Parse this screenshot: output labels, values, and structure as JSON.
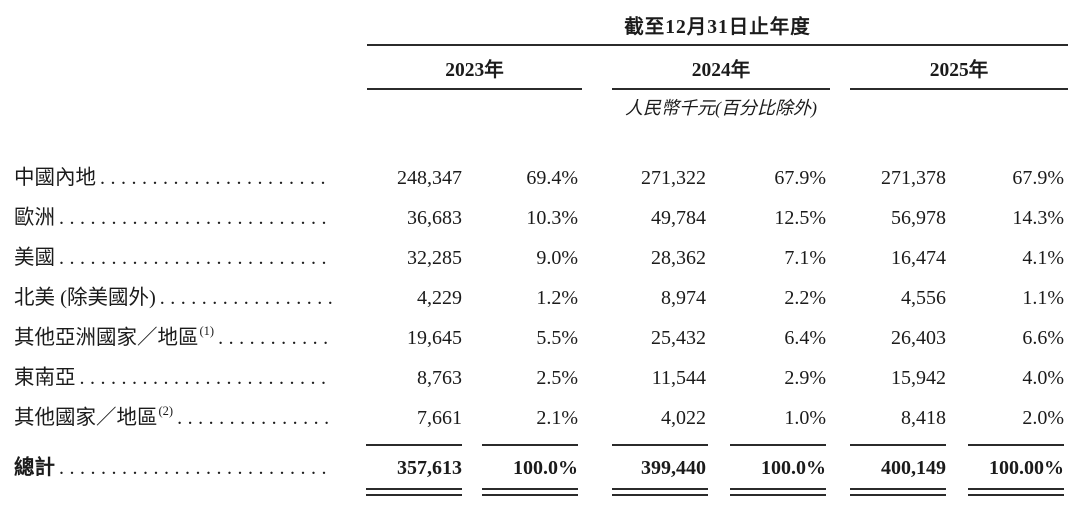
{
  "colors": {
    "background": "#ffffff",
    "text": "#1b1b1b",
    "rule": "#2b2b2b"
  },
  "table": {
    "period_header": "截至12月31日止年度",
    "years": [
      "2023年",
      "2024年",
      "2025年"
    ],
    "unit_note": "人民幣千元(百分比除外)",
    "column_kinds": [
      "amount",
      "percent",
      "amount",
      "percent",
      "amount",
      "percent"
    ],
    "rows": [
      {
        "label": "中國內地",
        "footnote": "",
        "values": [
          "248,347",
          "69.4%",
          "271,322",
          "67.9%",
          "271,378",
          "67.9%"
        ]
      },
      {
        "label": "歐洲",
        "footnote": "",
        "values": [
          "36,683",
          "10.3%",
          "49,784",
          "12.5%",
          "56,978",
          "14.3%"
        ]
      },
      {
        "label": "美國",
        "footnote": "",
        "values": [
          "32,285",
          "9.0%",
          "28,362",
          "7.1%",
          "16,474",
          "4.1%"
        ]
      },
      {
        "label": "北美 (除美國外)",
        "footnote": "",
        "values": [
          "4,229",
          "1.2%",
          "8,974",
          "2.2%",
          "4,556",
          "1.1%"
        ]
      },
      {
        "label": "其他亞洲國家／地區",
        "footnote": "(1)",
        "values": [
          "19,645",
          "5.5%",
          "25,432",
          "6.4%",
          "26,403",
          "6.6%"
        ]
      },
      {
        "label": "東南亞",
        "footnote": "",
        "values": [
          "8,763",
          "2.5%",
          "11,544",
          "2.9%",
          "15,942",
          "4.0%"
        ]
      },
      {
        "label": "其他國家／地區",
        "footnote": "(2)",
        "values": [
          "7,661",
          "2.1%",
          "4,022",
          "1.0%",
          "8,418",
          "2.0%"
        ]
      }
    ],
    "total": {
      "label": "總計",
      "values": [
        "357,613",
        "100.0%",
        "399,440",
        "100.0%",
        "400,149",
        "100.00%"
      ]
    }
  }
}
